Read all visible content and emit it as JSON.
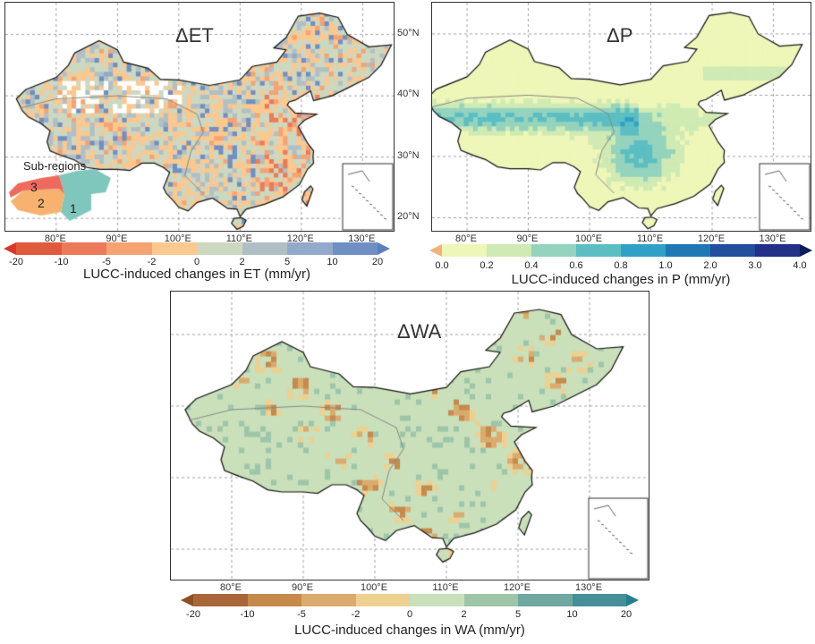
{
  "panels": [
    {
      "id": "et",
      "title": "ΔET",
      "lon_ticks": [
        "80°E",
        "90°E",
        "100°E",
        "110°E",
        "120°E",
        "130°E"
      ],
      "lat_ticks": [],
      "colorbar": {
        "ticks": [
          "-20",
          "-10",
          "-5",
          "-2",
          "0",
          "2",
          "5",
          "10",
          "20"
        ],
        "colors": [
          "#e05a3e",
          "#ec7a58",
          "#f5a373",
          "#fbc88f",
          "#cdd8c0",
          "#b0bfc6",
          "#92a9c9",
          "#6f8fc4"
        ],
        "low_color": "#d9372a",
        "high_color": "#5b80c0",
        "label": "LUCC-induced changes in ET (mm/yr)"
      },
      "sub_regions": {
        "title": "Sub-regions",
        "labels": [
          "1",
          "2",
          "3"
        ],
        "colors": [
          "#7fc7bd",
          "#f6b26e",
          "#ef6a5e"
        ]
      }
    },
    {
      "id": "p",
      "title": "ΔP",
      "lon_ticks": [
        "80°E",
        "90°E",
        "100°E",
        "110°E",
        "120°E",
        "130°E"
      ],
      "lat_ticks": [
        "50°N",
        "40°N",
        "30°N",
        "20°N"
      ],
      "colorbar": {
        "ticks": [
          "0.0",
          "0.2",
          "0.4",
          "0.6",
          "0.8",
          "1.0",
          "2.0",
          "3.0",
          "4.0"
        ],
        "colors": [
          "#eef6b8",
          "#cfeab3",
          "#94d3bd",
          "#5bbec3",
          "#31a0c6",
          "#1e78b4",
          "#234e9e",
          "#233088"
        ],
        "low_color": "#f7b07a",
        "high_color": "#0b1e5c",
        "label": "LUCC-induced changes in P (mm/yr)"
      }
    },
    {
      "id": "wa",
      "title": "ΔWA",
      "lon_ticks": [
        "80°E",
        "90°E",
        "100°E",
        "110°E",
        "120°E",
        "130°E"
      ],
      "lat_ticks": [],
      "colorbar": {
        "ticks": [
          "-20",
          "-10",
          "-5",
          "-2",
          "0",
          "2",
          "5",
          "10",
          "20"
        ],
        "colors": [
          "#a8663a",
          "#c58a4c",
          "#dbab6e",
          "#ecd192",
          "#c9e0ba",
          "#9dc6a9",
          "#6fa8a0",
          "#468f98"
        ],
        "low_color": "#8e4f25",
        "high_color": "#237f8e",
        "label": "LUCC-induced changes in WA (mm/yr)"
      }
    }
  ]
}
